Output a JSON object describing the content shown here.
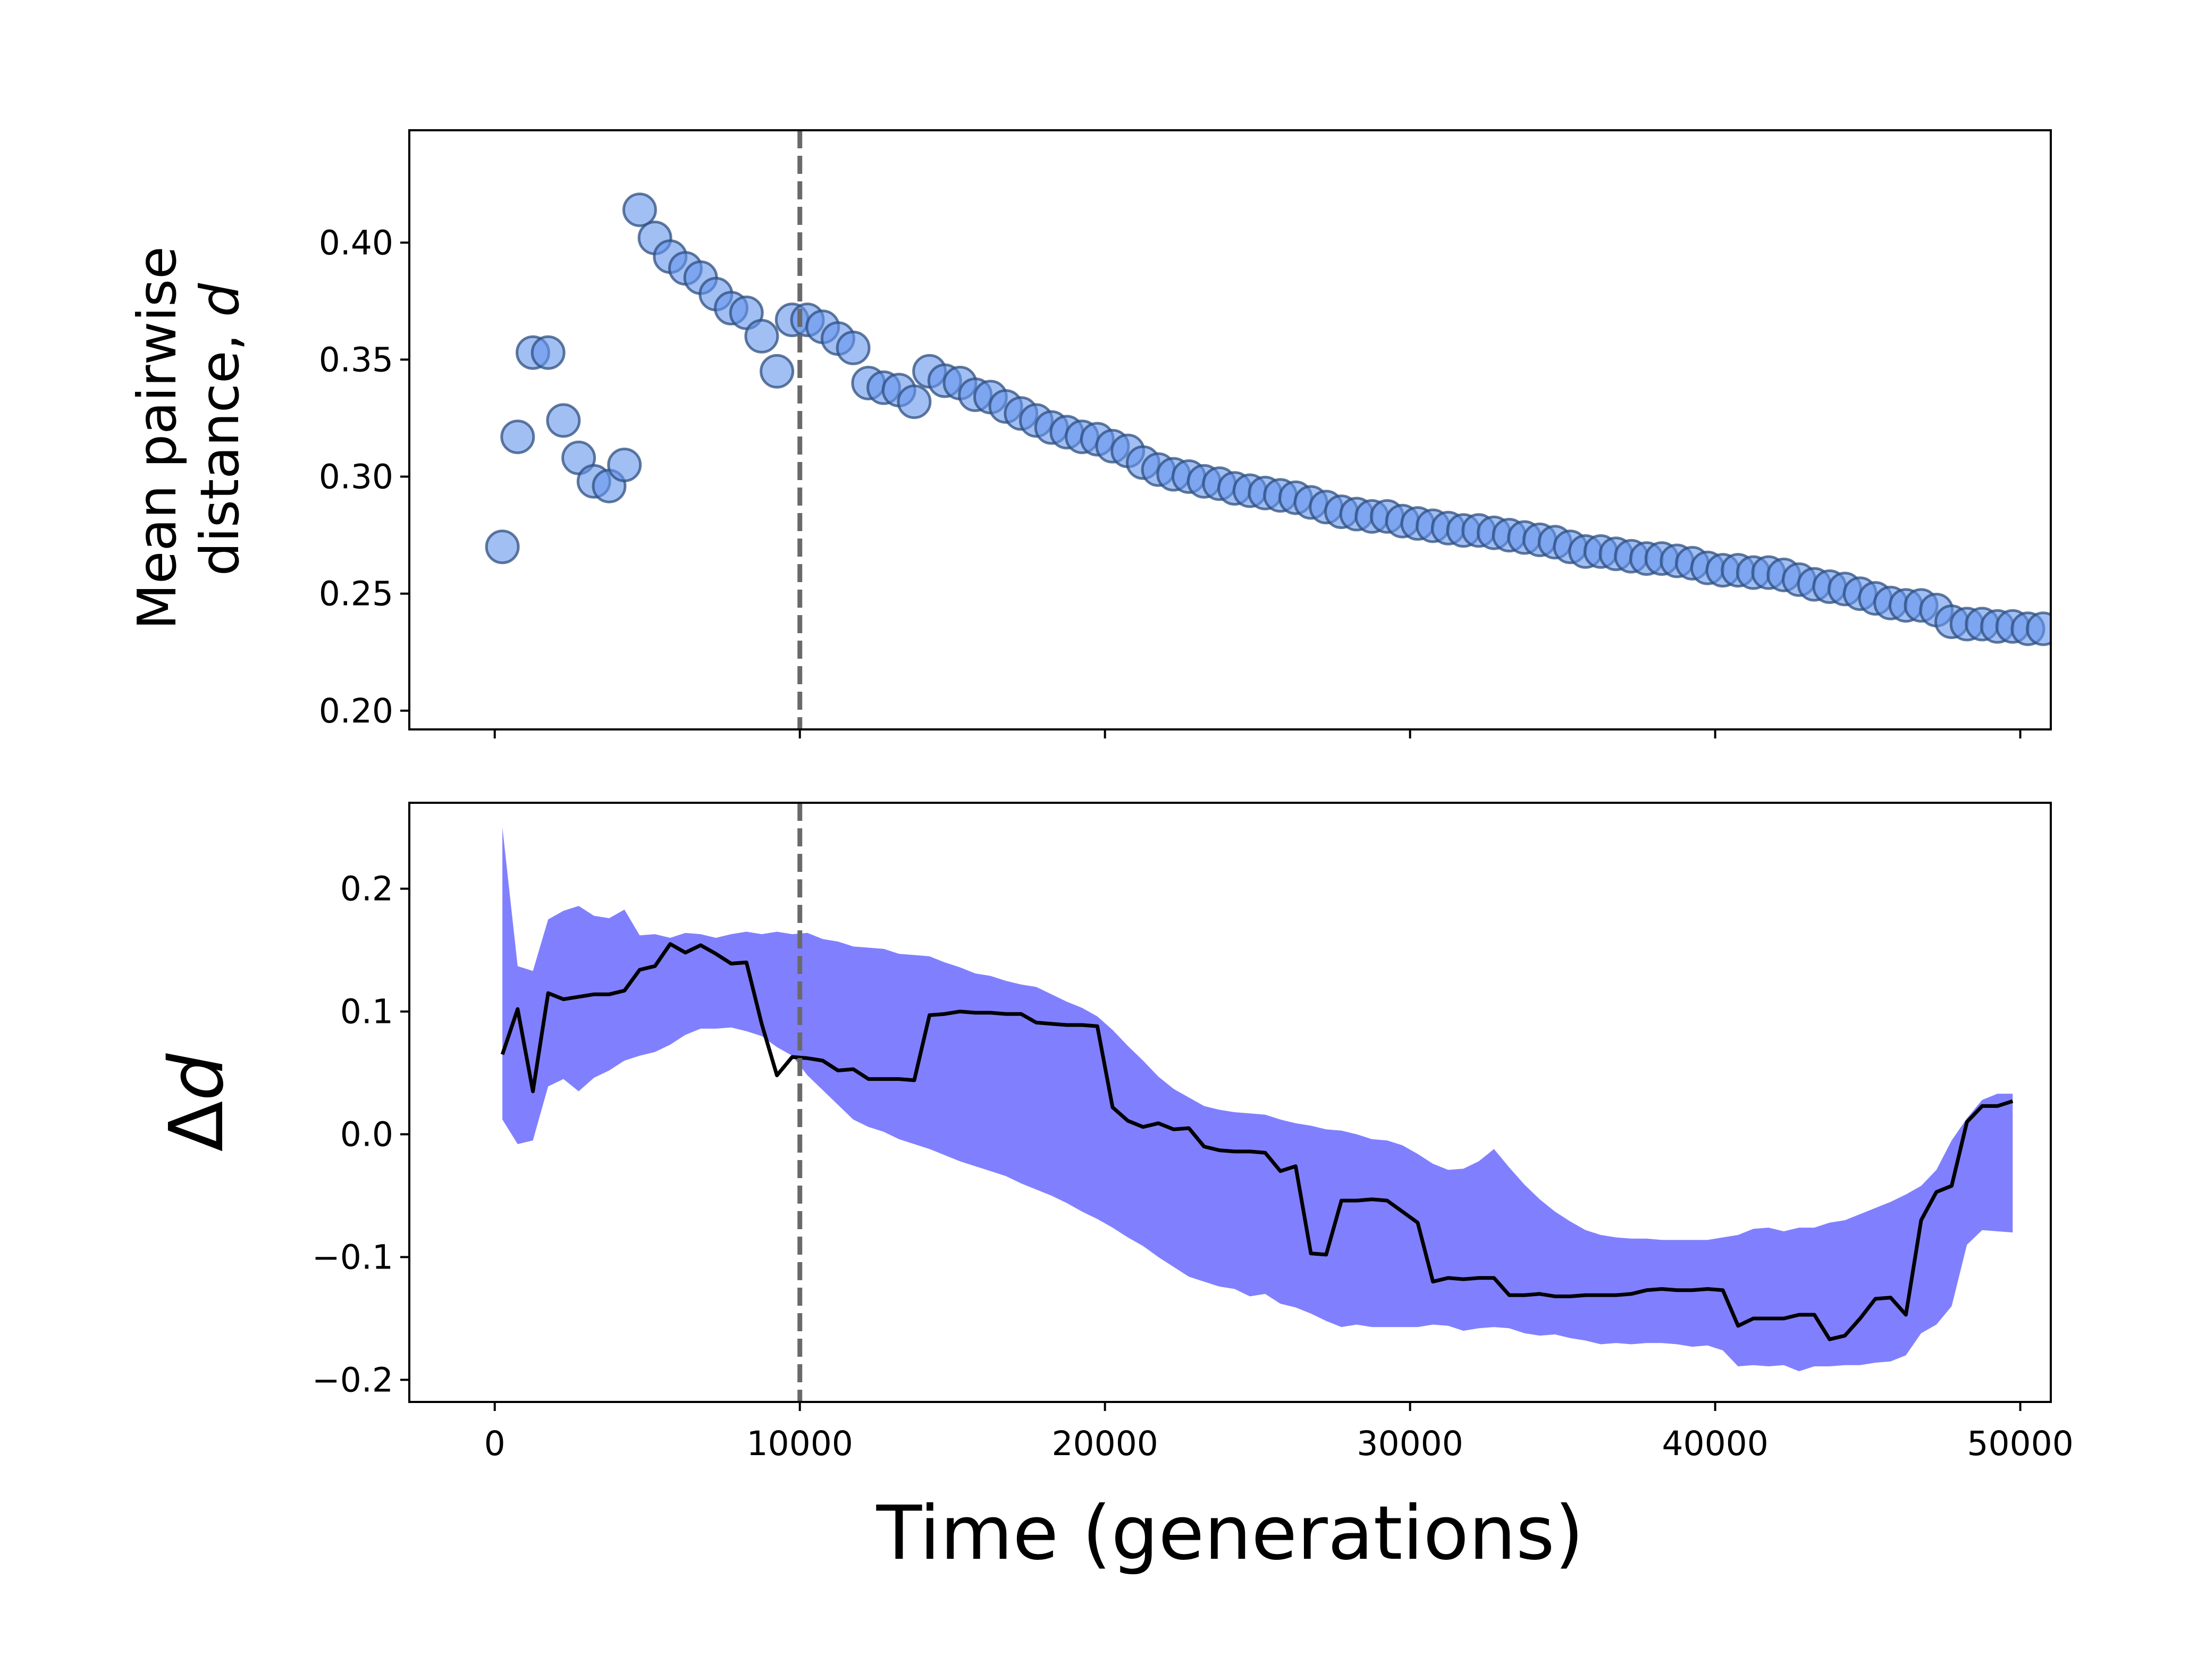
{
  "colors": {
    "scatter_fill": "#6495ED",
    "scatter_edge": "#2F4F7F",
    "band_fill": "#8080FF",
    "line": "#000000",
    "vline": "#696969"
  },
  "chart_data": [
    {
      "type": "scatter",
      "ylabel_lines": [
        "Mean pairwise",
        "distance, "
      ],
      "ylabel_var": "d",
      "xlim": [
        -2800,
        51000
      ],
      "ylim": [
        0.192,
        0.448
      ],
      "yticks": [
        0.2,
        0.25,
        0.3,
        0.35,
        0.4
      ],
      "ytick_labels": [
        "0.20",
        "0.25",
        "0.30",
        "0.35",
        "0.40"
      ],
      "xticks": [
        0,
        10000,
        20000,
        30000,
        40000,
        50000
      ],
      "vline_x": 10000,
      "points": [
        [
          250,
          0.27
        ],
        [
          750,
          0.317
        ],
        [
          1250,
          0.353
        ],
        [
          1750,
          0.353
        ],
        [
          2250,
          0.324
        ],
        [
          2750,
          0.308
        ],
        [
          3250,
          0.298
        ],
        [
          3750,
          0.296
        ],
        [
          4250,
          0.305
        ],
        [
          4750,
          0.414
        ],
        [
          5250,
          0.402
        ],
        [
          5750,
          0.394
        ],
        [
          6250,
          0.389
        ],
        [
          6750,
          0.385
        ],
        [
          7250,
          0.378
        ],
        [
          7750,
          0.372
        ],
        [
          8250,
          0.37
        ],
        [
          8750,
          0.36
        ],
        [
          9250,
          0.345
        ],
        [
          9750,
          0.367
        ],
        [
          10250,
          0.367
        ],
        [
          10750,
          0.364
        ],
        [
          11250,
          0.359
        ],
        [
          11750,
          0.355
        ],
        [
          12250,
          0.34
        ],
        [
          12750,
          0.338
        ],
        [
          13250,
          0.337
        ],
        [
          13750,
          0.332
        ],
        [
          14250,
          0.345
        ],
        [
          14750,
          0.341
        ],
        [
          15250,
          0.34
        ],
        [
          15750,
          0.335
        ],
        [
          16250,
          0.334
        ],
        [
          16750,
          0.33
        ],
        [
          17250,
          0.327
        ],
        [
          17750,
          0.324
        ],
        [
          18250,
          0.321
        ],
        [
          18750,
          0.319
        ],
        [
          19250,
          0.317
        ],
        [
          19750,
          0.316
        ],
        [
          20250,
          0.313
        ],
        [
          20750,
          0.311
        ],
        [
          21250,
          0.306
        ],
        [
          21750,
          0.303
        ],
        [
          22250,
          0.301
        ],
        [
          22750,
          0.3
        ],
        [
          23250,
          0.298
        ],
        [
          23750,
          0.297
        ],
        [
          24250,
          0.295
        ],
        [
          24750,
          0.294
        ],
        [
          25250,
          0.293
        ],
        [
          25750,
          0.292
        ],
        [
          26250,
          0.291
        ],
        [
          26750,
          0.289
        ],
        [
          27250,
          0.287
        ],
        [
          27750,
          0.285
        ],
        [
          28250,
          0.284
        ],
        [
          28750,
          0.283
        ],
        [
          29250,
          0.283
        ],
        [
          29750,
          0.281
        ],
        [
          30250,
          0.28
        ],
        [
          30750,
          0.279
        ],
        [
          31250,
          0.278
        ],
        [
          31750,
          0.277
        ],
        [
          32250,
          0.277
        ],
        [
          32750,
          0.276
        ],
        [
          33250,
          0.275
        ],
        [
          33750,
          0.274
        ],
        [
          34250,
          0.273
        ],
        [
          34750,
          0.272
        ],
        [
          35250,
          0.27
        ],
        [
          35750,
          0.268
        ],
        [
          36250,
          0.268
        ],
        [
          36750,
          0.267
        ],
        [
          37250,
          0.266
        ],
        [
          37750,
          0.265
        ],
        [
          38250,
          0.265
        ],
        [
          38750,
          0.264
        ],
        [
          39250,
          0.263
        ],
        [
          39750,
          0.261
        ],
        [
          40250,
          0.26
        ],
        [
          40750,
          0.26
        ],
        [
          41250,
          0.259
        ],
        [
          41750,
          0.259
        ],
        [
          42250,
          0.258
        ],
        [
          42750,
          0.256
        ],
        [
          43250,
          0.254
        ],
        [
          43750,
          0.253
        ],
        [
          44250,
          0.252
        ],
        [
          44750,
          0.25
        ],
        [
          45250,
          0.248
        ],
        [
          45750,
          0.246
        ],
        [
          46250,
          0.245
        ],
        [
          46750,
          0.245
        ],
        [
          47250,
          0.243
        ],
        [
          47750,
          0.238
        ],
        [
          48250,
          0.237
        ],
        [
          48750,
          0.237
        ],
        [
          49250,
          0.236
        ],
        [
          49750,
          0.236
        ],
        [
          50250,
          0.235
        ],
        [
          50750,
          0.235
        ]
      ]
    },
    {
      "type": "line",
      "ylabel_prefix": "Δ",
      "ylabel_var": "d",
      "xlabel": "Time (generations)",
      "xlim": [
        -2800,
        51000
      ],
      "ylim": [
        -0.218,
        0.27
      ],
      "yticks": [
        -0.2,
        -0.1,
        0.0,
        0.1,
        0.2
      ],
      "ytick_labels": [
        "−0.2",
        "−0.1",
        "0.0",
        "0.1",
        "0.2"
      ],
      "xticks": [
        0,
        10000,
        20000,
        30000,
        40000,
        50000
      ],
      "xtick_labels": [
        "0",
        "10000",
        "20000",
        "30000",
        "40000",
        "50000"
      ],
      "vline_x": 10000,
      "x": [
        250,
        750,
        1250,
        1750,
        2250,
        2750,
        3250,
        3750,
        4250,
        4750,
        5250,
        5750,
        6250,
        6750,
        7250,
        7750,
        8250,
        8750,
        9250,
        9750,
        10250,
        10750,
        11250,
        11750,
        12250,
        12750,
        13250,
        13750,
        14250,
        14750,
        15250,
        15750,
        16250,
        16750,
        17250,
        17750,
        18250,
        18750,
        19250,
        19750,
        20250,
        20750,
        21250,
        21750,
        22250,
        22750,
        23250,
        23750,
        24250,
        24750,
        25250,
        25750,
        26250,
        26750,
        27250,
        27750,
        28250,
        28750,
        29250,
        29750,
        30250,
        30750,
        31250,
        31750,
        32250,
        32750,
        33250,
        33750,
        34250,
        34750,
        35250,
        35750,
        36250,
        36750,
        37250,
        37750,
        38250,
        38750,
        39250,
        39750,
        40250,
        40750,
        41250,
        41750,
        42250,
        42750,
        43250,
        43750,
        44250,
        44750,
        45250,
        45750,
        46250,
        46750,
        47250,
        47750,
        48250,
        48750,
        49250,
        49750
      ],
      "mean": [
        0.065,
        0.102,
        0.035,
        0.115,
        0.11,
        0.112,
        0.114,
        0.114,
        0.117,
        0.134,
        0.137,
        0.155,
        0.148,
        0.154,
        0.147,
        0.139,
        0.14,
        0.09,
        0.048,
        0.063,
        0.062,
        0.06,
        0.052,
        0.053,
        0.045,
        0.045,
        0.045,
        0.044,
        0.097,
        0.098,
        0.1,
        0.099,
        0.099,
        0.098,
        0.098,
        0.091,
        0.09,
        0.089,
        0.089,
        0.088,
        0.022,
        0.011,
        0.006,
        0.009,
        0.004,
        0.005,
        -0.01,
        -0.013,
        -0.014,
        -0.014,
        -0.015,
        -0.03,
        -0.026,
        -0.097,
        -0.098,
        -0.054,
        -0.054,
        -0.053,
        -0.054,
        -0.063,
        -0.072,
        -0.12,
        -0.117,
        -0.118,
        -0.117,
        -0.117,
        -0.131,
        -0.131,
        -0.13,
        -0.132,
        -0.132,
        -0.131,
        -0.131,
        -0.131,
        -0.13,
        -0.127,
        -0.126,
        -0.127,
        -0.127,
        -0.126,
        -0.127,
        -0.156,
        -0.15,
        -0.15,
        -0.15,
        -0.147,
        -0.147,
        -0.167,
        -0.164,
        -0.15,
        -0.134,
        -0.133,
        -0.147,
        -0.07,
        -0.047,
        -0.042,
        0.01,
        0.023,
        0.023,
        0.027
      ],
      "lower": [
        0.012,
        -0.008,
        -0.005,
        0.039,
        0.045,
        0.035,
        0.046,
        0.052,
        0.06,
        0.064,
        0.067,
        0.073,
        0.081,
        0.086,
        0.086,
        0.087,
        0.084,
        0.08,
        0.071,
        0.064,
        0.048,
        0.036,
        0.024,
        0.012,
        0.006,
        0.002,
        -0.004,
        -0.008,
        -0.012,
        -0.017,
        -0.022,
        -0.026,
        -0.03,
        -0.034,
        -0.04,
        -0.045,
        -0.05,
        -0.056,
        -0.063,
        -0.069,
        -0.076,
        -0.084,
        -0.091,
        -0.1,
        -0.108,
        -0.116,
        -0.12,
        -0.124,
        -0.126,
        -0.132,
        -0.13,
        -0.138,
        -0.141,
        -0.146,
        -0.152,
        -0.157,
        -0.155,
        -0.157,
        -0.157,
        -0.157,
        -0.157,
        -0.155,
        -0.156,
        -0.16,
        -0.158,
        -0.157,
        -0.158,
        -0.162,
        -0.164,
        -0.163,
        -0.166,
        -0.168,
        -0.171,
        -0.17,
        -0.171,
        -0.17,
        -0.17,
        -0.171,
        -0.173,
        -0.172,
        -0.176,
        -0.189,
        -0.188,
        -0.189,
        -0.188,
        -0.193,
        -0.189,
        -0.189,
        -0.188,
        -0.188,
        -0.186,
        -0.185,
        -0.18,
        -0.162,
        -0.155,
        -0.14,
        -0.09,
        -0.078,
        -0.079,
        -0.08
      ],
      "upper": [
        0.25,
        0.137,
        0.133,
        0.175,
        0.182,
        0.186,
        0.178,
        0.176,
        0.183,
        0.162,
        0.163,
        0.16,
        0.164,
        0.163,
        0.16,
        0.163,
        0.165,
        0.163,
        0.165,
        0.163,
        0.164,
        0.159,
        0.157,
        0.153,
        0.152,
        0.151,
        0.147,
        0.146,
        0.145,
        0.14,
        0.136,
        0.131,
        0.129,
        0.125,
        0.122,
        0.12,
        0.114,
        0.108,
        0.103,
        0.096,
        0.085,
        0.072,
        0.06,
        0.047,
        0.037,
        0.03,
        0.023,
        0.02,
        0.018,
        0.017,
        0.016,
        0.012,
        0.009,
        0.007,
        0.004,
        0.003,
        0.0,
        -0.004,
        -0.005,
        -0.009,
        -0.016,
        -0.024,
        -0.029,
        -0.028,
        -0.022,
        -0.012,
        -0.027,
        -0.041,
        -0.053,
        -0.063,
        -0.071,
        -0.078,
        -0.082,
        -0.084,
        -0.085,
        -0.085,
        -0.086,
        -0.086,
        -0.086,
        -0.086,
        -0.084,
        -0.082,
        -0.077,
        -0.076,
        -0.079,
        -0.076,
        -0.076,
        -0.072,
        -0.07,
        -0.065,
        -0.06,
        -0.055,
        -0.049,
        -0.042,
        -0.029,
        -0.005,
        0.013,
        0.028,
        0.033,
        0.033
      ]
    }
  ]
}
